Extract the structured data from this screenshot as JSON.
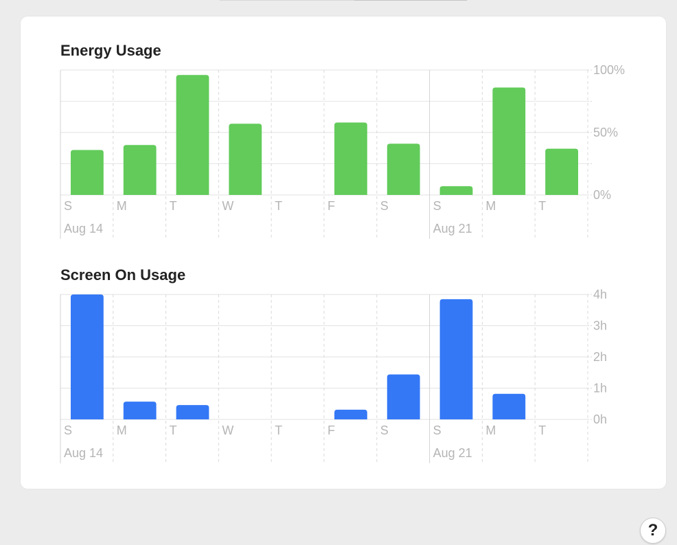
{
  "chart_data": [
    {
      "type": "bar",
      "title": "Energy Usage",
      "categories": [
        "S",
        "M",
        "T",
        "W",
        "T",
        "F",
        "S",
        "S",
        "M",
        "T"
      ],
      "dates": [
        "Aug 14",
        null,
        null,
        null,
        null,
        null,
        null,
        "Aug 21",
        null,
        null
      ],
      "values": [
        36,
        40,
        96,
        57,
        0,
        58,
        41,
        7,
        86,
        37
      ],
      "color": "#62cb5a",
      "ylim": [
        0,
        100
      ],
      "yticks": [
        {
          "value": 0,
          "label": "0%"
        },
        {
          "value": 50,
          "label": "50%"
        },
        {
          "value": 100,
          "label": "100%"
        }
      ],
      "minor_yticks": [
        25,
        75
      ],
      "grid": true
    },
    {
      "type": "bar",
      "title": "Screen On Usage",
      "categories": [
        "S",
        "M",
        "T",
        "W",
        "T",
        "F",
        "S",
        "S",
        "M",
        "T"
      ],
      "dates": [
        "Aug 14",
        null,
        null,
        null,
        null,
        null,
        null,
        "Aug 21",
        null,
        null
      ],
      "values": [
        4.0,
        0.57,
        0.46,
        0,
        0,
        0.31,
        1.44,
        3.85,
        0.82,
        0
      ],
      "color": "#3478f6",
      "ylim": [
        0,
        4
      ],
      "yticks": [
        {
          "value": 0,
          "label": "0h"
        },
        {
          "value": 1,
          "label": "1h"
        },
        {
          "value": 2,
          "label": "2h"
        },
        {
          "value": 3,
          "label": "3h"
        },
        {
          "value": 4,
          "label": "4h"
        }
      ],
      "minor_yticks": [],
      "grid": true
    }
  ],
  "help_button": "?"
}
